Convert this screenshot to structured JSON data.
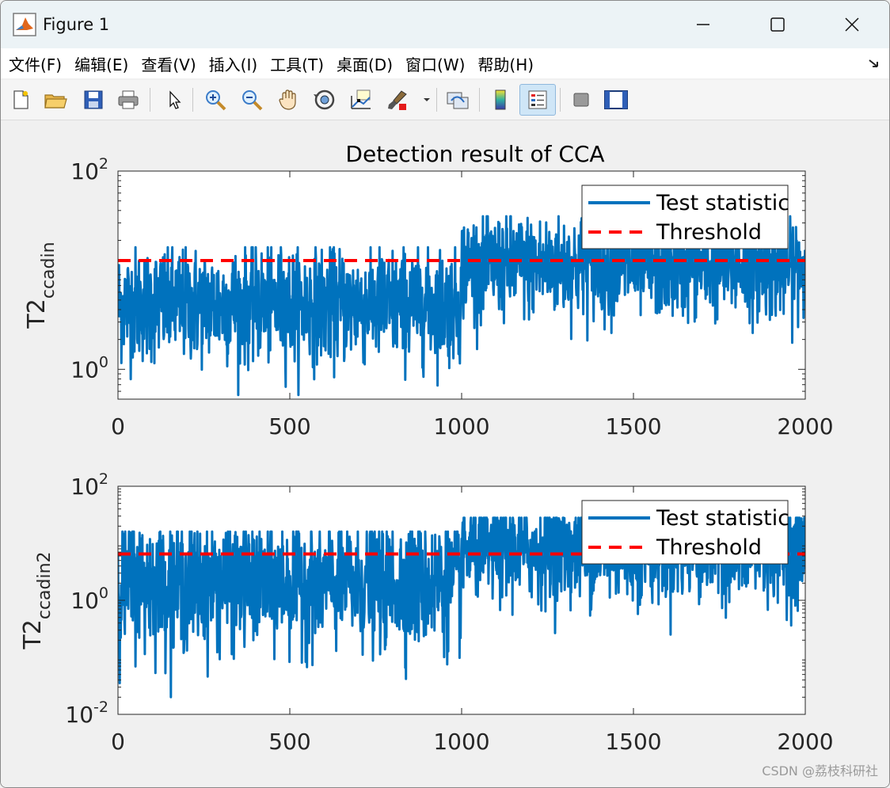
{
  "window": {
    "title": "Figure 1"
  },
  "menu": [
    {
      "label": "文件(F)"
    },
    {
      "label": "编辑(E)"
    },
    {
      "label": "查看(V)"
    },
    {
      "label": "插入(I)"
    },
    {
      "label": "工具(T)"
    },
    {
      "label": "桌面(D)"
    },
    {
      "label": "窗口(W)"
    },
    {
      "label": "帮助(H)"
    }
  ],
  "toolbar": {
    "icons": [
      "new-file-icon",
      "open-folder-icon",
      "save-icon",
      "print-icon",
      "pointer-icon",
      "zoom-in-icon",
      "zoom-out-icon",
      "pan-hand-icon",
      "rotate-3d-icon",
      "data-cursor-icon",
      "brush-icon",
      "link-plot-icon",
      "colorbar-icon",
      "legend-icon",
      "hide-plot-tools-icon",
      "show-plot-tools-icon"
    ]
  },
  "colors": {
    "series": "#0072bd",
    "threshold": "#ff0000"
  },
  "chart_data": [
    {
      "type": "line",
      "title": "Detection result of CCA",
      "ylabel_main": "T2",
      "ylabel_sub": "ccadin",
      "xlim": [
        0,
        2000
      ],
      "ylim": [
        0.5,
        100
      ],
      "yscale": "log",
      "xticks": [
        0,
        500,
        1000,
        1500,
        2000
      ],
      "xtick_labels": [
        "0",
        "500",
        "1000",
        "1500",
        "2000"
      ],
      "yticks": [
        1,
        100
      ],
      "ytick_labels": [
        {
          "base": "10",
          "exp": "0"
        },
        {
          "base": "10",
          "exp": "2"
        }
      ],
      "legend": {
        "placement": "top-right",
        "entries": [
          "Test statistic",
          "Threshold"
        ]
      },
      "threshold": 12.5,
      "series": [
        {
          "name": "Test statistic",
          "segments": [
            {
              "x0": 0,
              "x1": 1000,
              "median": 4.5,
              "low": 0.55,
              "high": 17
            },
            {
              "x0": 1000,
              "x1": 2000,
              "median": 11,
              "low": 1.6,
              "high": 35
            }
          ]
        }
      ]
    },
    {
      "type": "line",
      "title": "",
      "ylabel_main": "T2",
      "ylabel_sub": "ccadin2",
      "xlim": [
        0,
        2000
      ],
      "ylim": [
        0.01,
        100
      ],
      "yscale": "log",
      "xticks": [
        0,
        500,
        1000,
        1500,
        2000
      ],
      "xtick_labels": [
        "0",
        "500",
        "1000",
        "1500",
        "2000"
      ],
      "yticks": [
        0.01,
        1,
        100
      ],
      "ytick_labels": [
        {
          "base": "10",
          "exp": "-2"
        },
        {
          "base": "10",
          "exp": "0"
        },
        {
          "base": "10",
          "exp": "2"
        }
      ],
      "legend": {
        "placement": "top-right",
        "entries": [
          "Test statistic",
          "Threshold"
        ]
      },
      "threshold": 6.5,
      "series": [
        {
          "name": "Test statistic",
          "segments": [
            {
              "x0": 0,
              "x1": 1000,
              "median": 2.0,
              "low": 0.02,
              "high": 16
            },
            {
              "x0": 1000,
              "x1": 2000,
              "median": 7.5,
              "low": 0.15,
              "high": 28
            }
          ]
        }
      ]
    }
  ],
  "watermark": "CSDN @荔枝科研社"
}
